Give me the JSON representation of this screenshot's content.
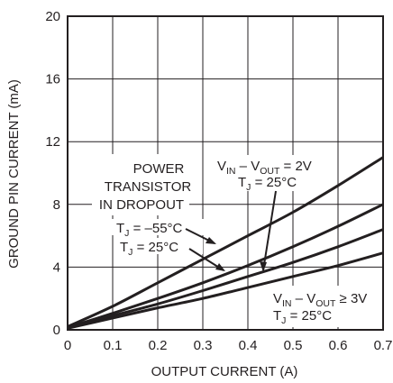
{
  "chart_data": {
    "type": "line",
    "xlabel": "OUTPUT CURRENT (A)",
    "ylabel": "GROUND PIN CURRENT (mA)",
    "xlim": [
      0,
      0.7
    ],
    "ylim": [
      0,
      20
    ],
    "x_ticks": [
      "0",
      "0.1",
      "0.2",
      "0.3",
      "0.4",
      "0.5",
      "0.6",
      "0.7"
    ],
    "y_ticks": [
      "0",
      "4",
      "8",
      "12",
      "16",
      "20"
    ],
    "grid": true,
    "series": [
      {
        "x": [
          0,
          0.1,
          0.2,
          0.3,
          0.4,
          0.5,
          0.6,
          0.7
        ],
        "values": [
          0.2,
          1.5,
          3.0,
          4.5,
          6.0,
          7.5,
          9.2,
          11.0
        ]
      },
      {
        "x": [
          0,
          0.1,
          0.2,
          0.3,
          0.4,
          0.5,
          0.6,
          0.7
        ],
        "values": [
          0.15,
          1.05,
          2.0,
          3.0,
          4.1,
          5.3,
          6.6,
          8.0
        ]
      },
      {
        "x": [
          0,
          0.1,
          0.2,
          0.3,
          0.4,
          0.5,
          0.6,
          0.7
        ],
        "values": [
          0.12,
          0.9,
          1.65,
          2.5,
          3.4,
          4.3,
          5.3,
          6.4
        ]
      },
      {
        "x": [
          0,
          0.1,
          0.2,
          0.3,
          0.4,
          0.5,
          0.6,
          0.7
        ],
        "values": [
          0.1,
          0.75,
          1.4,
          2.0,
          2.7,
          3.4,
          4.1,
          4.9
        ]
      }
    ],
    "annotations": {
      "power_line1": "POWER",
      "power_line2": "TRANSISTOR",
      "power_line3": "IN DROPOUT",
      "tj_m55": {
        "main": "T",
        "sub": "J",
        "rest": " = –55°C"
      },
      "tj_25a": {
        "main": "T",
        "sub": "J",
        "rest": " = 25°C"
      },
      "vin2v": {
        "v1": "V",
        "s1": "IN",
        "mid": " – V",
        "s2": "OUT",
        "rest": " = 2V"
      },
      "tj_25b": {
        "main": "T",
        "sub": "J",
        "rest": " = 25°C"
      },
      "vin3v": {
        "v1": "V",
        "s1": "IN",
        "mid": " – V",
        "s2": "OUT",
        "rest": " ≥ 3V"
      },
      "tj_25c": {
        "main": "T",
        "sub": "J",
        "rest": " = 25°C"
      }
    },
    "line_color": "#231f20",
    "grid_color": "#231f20"
  }
}
